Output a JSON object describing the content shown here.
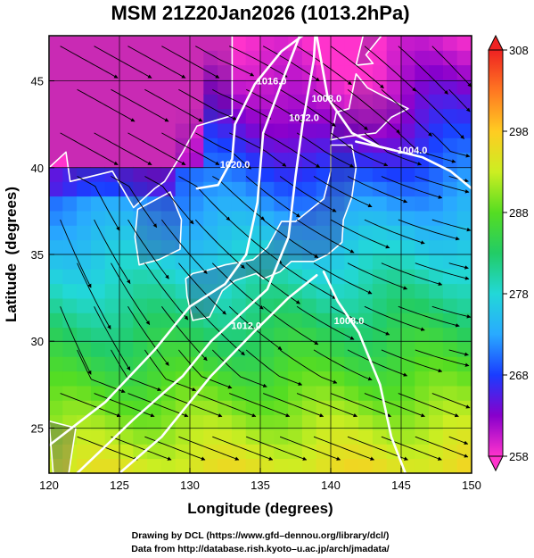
{
  "chart_data": {
    "type": "heatmap",
    "title": "MSM 21Z20Jan2026 (1013.2hPa)",
    "xlabel": "Longitude (degrees)",
    "ylabel": "Latitude  (degrees)",
    "xlim": [
      120,
      150
    ],
    "ylim": [
      22.4,
      47.6
    ],
    "x_ticks": [
      "120",
      "125",
      "130",
      "135",
      "140",
      "145",
      "150"
    ],
    "y_ticks": [
      "25",
      "30",
      "35",
      "40",
      "45"
    ],
    "grid": true,
    "colorbar": {
      "min": 258,
      "max": 308,
      "ticks": [
        "258",
        "268",
        "278",
        "288",
        "298",
        "308"
      ],
      "colors": [
        "#ff33cc",
        "#8800cc",
        "#1a3cff",
        "#29aaff",
        "#22d8d8",
        "#22cc66",
        "#55dd22",
        "#ccee22",
        "#ffcc22",
        "#ff7722",
        "#ee2222"
      ]
    },
    "contours": [
      {
        "label": "1020.0",
        "label_at": [
          133.2,
          40.0
        ],
        "points": [
          [
            130.5,
            38.8
          ],
          [
            132.0,
            39.0
          ],
          [
            133.0,
            40.5
          ],
          [
            133.2,
            42.5
          ],
          [
            134.6,
            44.8
          ],
          [
            136.5,
            46.7
          ],
          [
            138.0,
            47.6
          ]
        ]
      },
      {
        "label": "1016.0",
        "label_at": [
          135.8,
          44.8
        ],
        "points": [
          [
            120.0,
            24.0
          ],
          [
            124.0,
            26.5
          ],
          [
            127.5,
            29.5
          ],
          [
            130.0,
            32.0
          ],
          [
            132.5,
            33.3
          ],
          [
            134.0,
            35.0
          ],
          [
            134.8,
            38.0
          ],
          [
            135.2,
            42.0
          ],
          [
            136.8,
            45.5
          ],
          [
            137.8,
            47.6
          ]
        ]
      },
      {
        "label": "1012.0",
        "label_at": [
          138.1,
          42.7
        ],
        "points": [
          [
            122.0,
            22.4
          ],
          [
            126.0,
            25.5
          ],
          [
            129.5,
            28.0
          ],
          [
            131.5,
            30.0
          ],
          [
            133.5,
            31.5
          ],
          [
            135.5,
            33.0
          ],
          [
            137.0,
            36.0
          ],
          [
            137.5,
            39.5
          ],
          [
            138.0,
            42.5
          ],
          [
            138.8,
            46.2
          ],
          [
            138.9,
            47.6
          ]
        ]
      },
      {
        "label": "1008.0",
        "label_at": [
          139.7,
          43.8
        ],
        "points": [
          [
            139.0,
            47.6
          ],
          [
            139.8,
            44.0
          ],
          [
            141.5,
            42.0
          ],
          [
            143.5,
            41.2
          ],
          [
            144.5,
            41.0
          ]
        ]
      },
      {
        "label": "1004.0",
        "label_at": [
          145.8,
          40.8
        ],
        "points": [
          [
            141.8,
            41.5
          ],
          [
            144.0,
            41.1
          ],
          [
            146.5,
            40.6
          ],
          [
            148.5,
            39.8
          ],
          [
            150.0,
            38.8
          ]
        ]
      },
      {
        "label": "1008.0",
        "label_at": [
          141.3,
          31.0
        ],
        "points": [
          [
            139.5,
            34.0
          ],
          [
            140.5,
            32.3
          ],
          [
            142.0,
            30.5
          ],
          [
            143.5,
            27.5
          ],
          [
            144.3,
            24.5
          ],
          [
            145.3,
            22.4
          ]
        ]
      },
      {
        "label": "1012.0",
        "label_at": [
          134.0,
          30.7
        ],
        "points": [
          [
            125.0,
            22.4
          ],
          [
            128.0,
            24.5
          ],
          [
            131.5,
            28.0
          ],
          [
            134.5,
            30.5
          ],
          [
            137.0,
            32.5
          ],
          [
            139.0,
            33.8
          ]
        ]
      }
    ]
  }
}
